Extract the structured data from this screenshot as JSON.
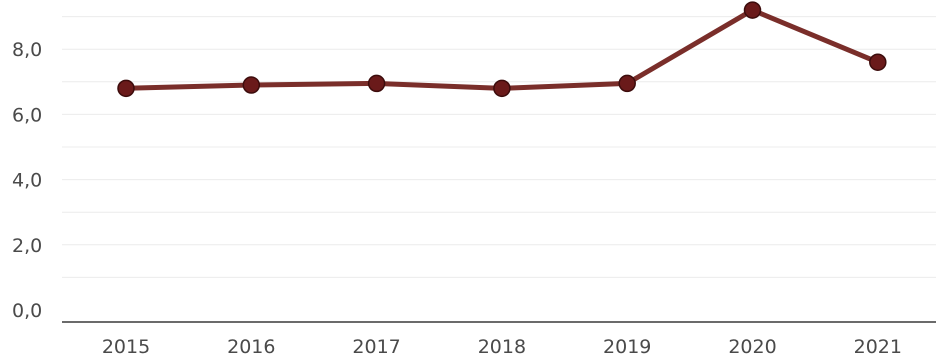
{
  "chart_data": {
    "type": "line",
    "title": "",
    "xlabel": "",
    "ylabel": "",
    "categories": [
      "2015",
      "2016",
      "2017",
      "2018",
      "2019",
      "2020",
      "2021"
    ],
    "series": [
      {
        "values": [
          6.8,
          6.9,
          6.95,
          6.8,
          6.95,
          9.2,
          7.6
        ]
      }
    ],
    "y_ticks": [
      "0,0",
      "2,0",
      "4,0",
      "6,0",
      "8,0"
    ],
    "y_tick_values": [
      0,
      2,
      4,
      6,
      8
    ],
    "ylim": [
      0,
      9.25
    ],
    "grid": true,
    "line_color": "#7a2e2a",
    "marker_color": "#6a1a1a",
    "legend": false
  }
}
